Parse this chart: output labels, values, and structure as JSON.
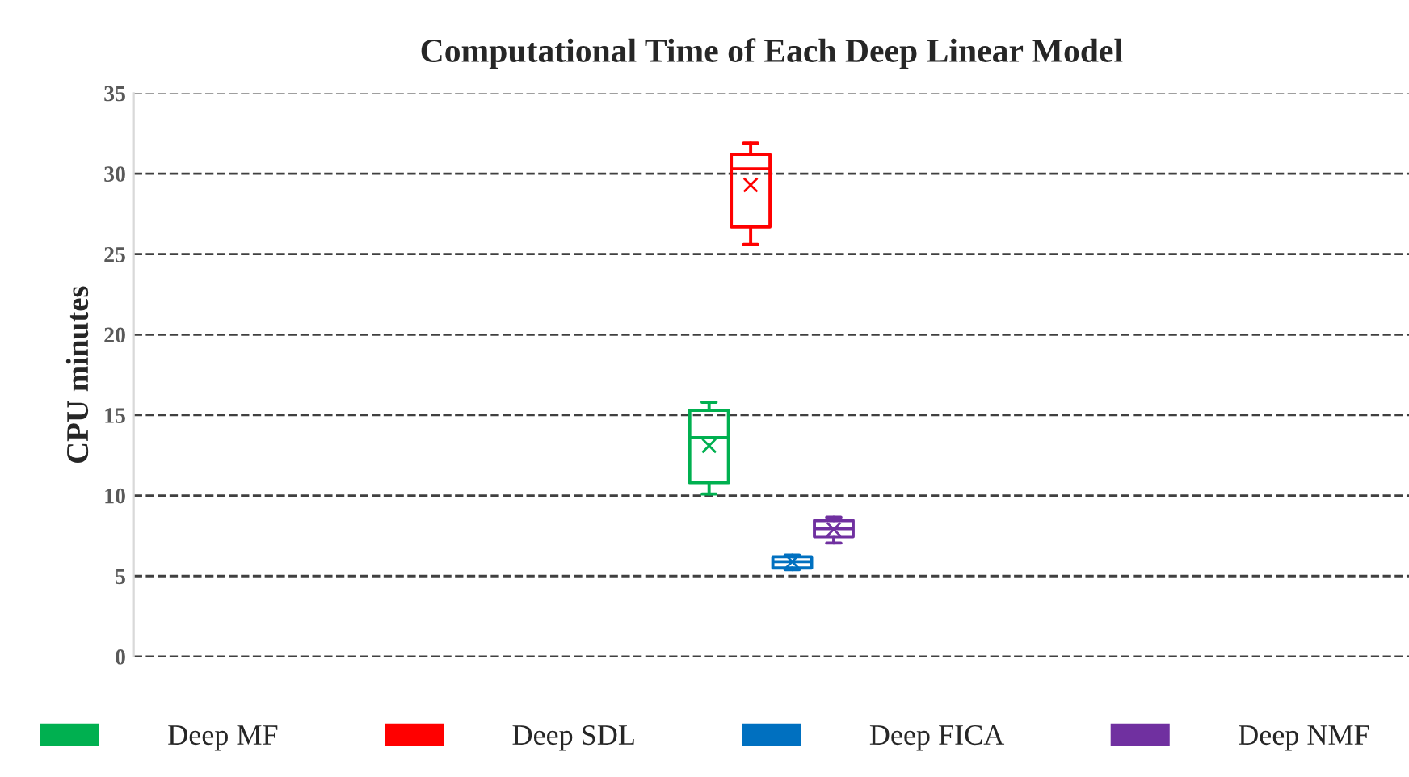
{
  "chart_data": {
    "type": "box",
    "title": "Computational Time of Each Deep Linear Model",
    "ylabel": "CPU minutes",
    "categories": [
      null
    ],
    "series": [
      {
        "name": "Deep MF",
        "color": "#00b050",
        "boxes": [
          {
            "low": 10.1,
            "q1": 10.8,
            "median": 13.6,
            "q3": 15.3,
            "high": 15.8,
            "mean": 13.1
          }
        ]
      },
      {
        "name": "Deep SDL",
        "color": "#ff0000",
        "boxes": [
          {
            "low": 25.6,
            "q1": 26.7,
            "median": 30.3,
            "q3": 31.2,
            "high": 31.9,
            "mean": 29.3
          }
        ]
      },
      {
        "name": "Deep FICA",
        "color": "#0070c0",
        "boxes": [
          {
            "low": 5.4,
            "q1": 5.5,
            "median": 5.9,
            "q3": 6.2,
            "high": 6.3,
            "mean": 5.9
          }
        ]
      },
      {
        "name": "Deep NMF",
        "color": "#7030a0",
        "boxes": [
          {
            "low": 7.05,
            "q1": 7.45,
            "median": 7.95,
            "q3": 8.45,
            "high": 8.65,
            "mean": 7.9
          }
        ]
      }
    ],
    "ylim": [
      0,
      35
    ],
    "yticks": [
      0,
      5,
      10,
      15,
      20,
      25,
      30,
      35
    ],
    "grid": "y",
    "line_style": "dashed",
    "legend": "bottom",
    "marker": "cross"
  }
}
